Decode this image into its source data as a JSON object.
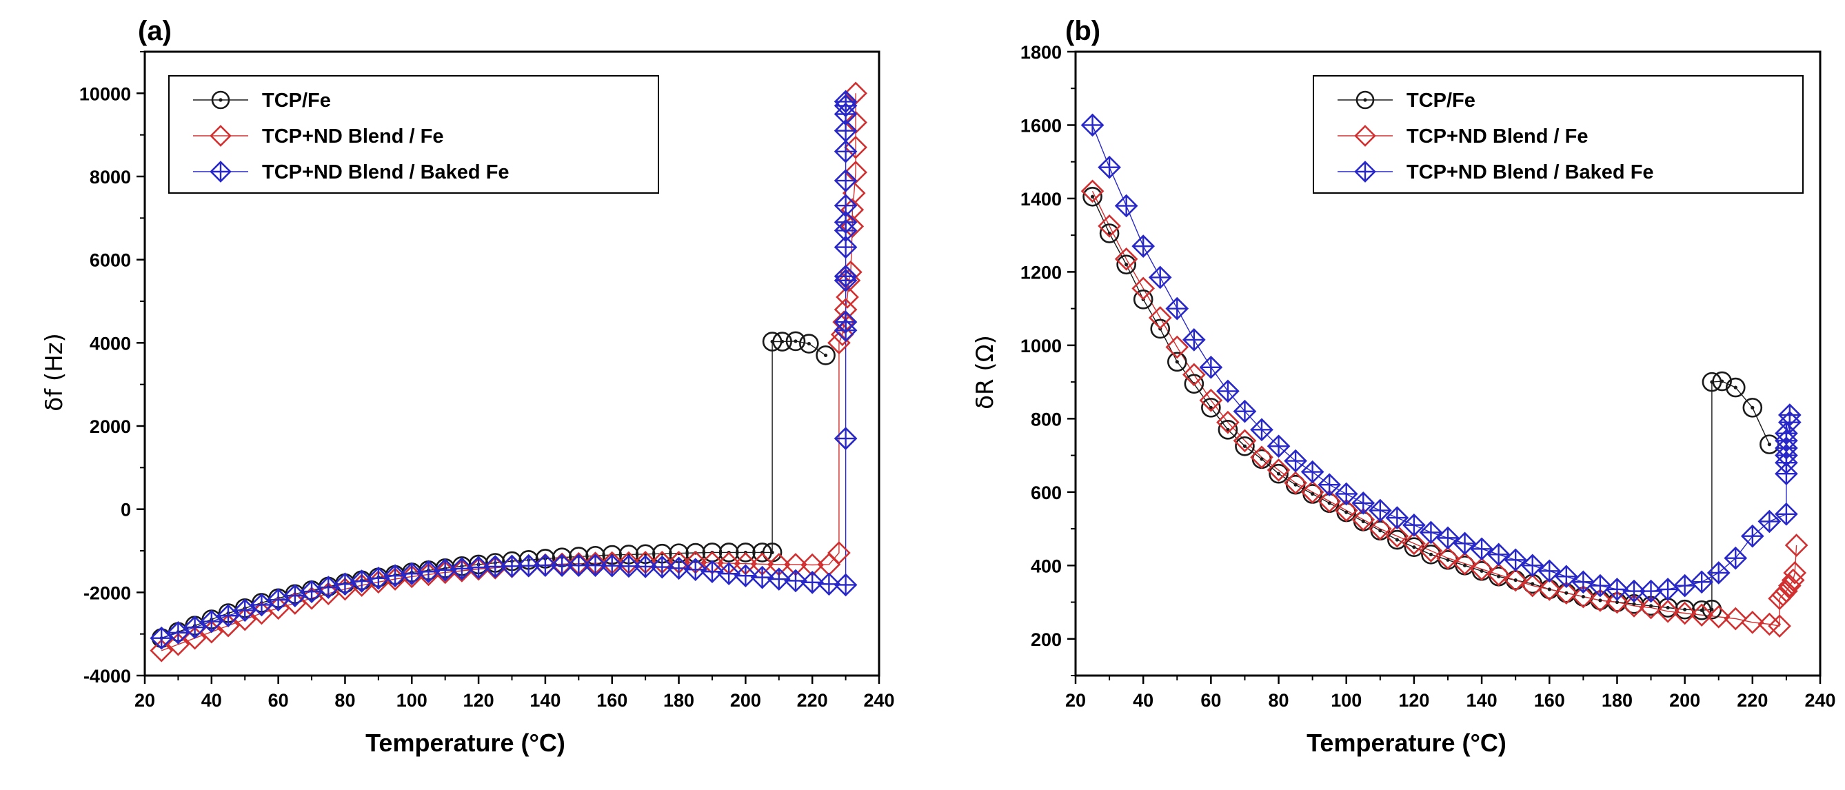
{
  "figure": {
    "background": "#ffffff"
  },
  "chart_data": [
    {
      "type": "scatter",
      "panel_label": "(a)",
      "xlabel": "Temperature (°C)",
      "ylabel": "δf (Hz)",
      "xlim": [
        20,
        240
      ],
      "ylim": [
        -4000,
        11000
      ],
      "xticks": [
        20,
        40,
        60,
        80,
        100,
        120,
        140,
        160,
        180,
        200,
        220,
        240
      ],
      "yticks": [
        -4000,
        -2000,
        0,
        2000,
        4000,
        6000,
        8000,
        10000
      ],
      "legend": "top-left",
      "series": [
        {
          "name": "TCP/Fe",
          "marker": "circle",
          "color": "#1a1a1a",
          "x": [
            25,
            30,
            35,
            40,
            45,
            50,
            55,
            60,
            65,
            70,
            75,
            80,
            85,
            90,
            95,
            100,
            105,
            110,
            115,
            120,
            125,
            130,
            135,
            140,
            145,
            150,
            155,
            160,
            165,
            170,
            175,
            180,
            185,
            190,
            195,
            200,
            205,
            208,
            208,
            211,
            215,
            219,
            224
          ],
          "y": [
            -3100,
            -2950,
            -2800,
            -2650,
            -2500,
            -2380,
            -2250,
            -2140,
            -2040,
            -1950,
            -1860,
            -1780,
            -1710,
            -1640,
            -1580,
            -1520,
            -1470,
            -1420,
            -1370,
            -1330,
            -1290,
            -1250,
            -1220,
            -1190,
            -1160,
            -1140,
            -1120,
            -1100,
            -1090,
            -1080,
            -1070,
            -1060,
            -1050,
            -1040,
            -1040,
            -1040,
            -1040,
            -1040,
            4030,
            4030,
            4040,
            3980,
            3700
          ]
        },
        {
          "name": "TCP+ND Blend / Fe",
          "marker": "diamond",
          "color": "#d23030",
          "x": [
            25,
            30,
            35,
            40,
            45,
            50,
            55,
            60,
            65,
            70,
            75,
            80,
            85,
            90,
            95,
            100,
            105,
            110,
            115,
            120,
            125,
            130,
            135,
            140,
            145,
            150,
            155,
            160,
            165,
            170,
            175,
            180,
            185,
            190,
            195,
            200,
            205,
            210,
            215,
            220,
            225,
            228,
            228,
            229,
            229.5,
            230,
            230.5,
            231,
            231.5,
            232,
            232,
            232.5,
            233,
            233,
            233,
            233
          ],
          "y": [
            -3400,
            -3250,
            -3100,
            -2950,
            -2800,
            -2650,
            -2500,
            -2380,
            -2260,
            -2140,
            -2030,
            -1920,
            -1830,
            -1750,
            -1680,
            -1620,
            -1570,
            -1520,
            -1480,
            -1440,
            -1410,
            -1380,
            -1360,
            -1340,
            -1320,
            -1310,
            -1300,
            -1290,
            -1290,
            -1280,
            -1280,
            -1280,
            -1280,
            -1290,
            -1300,
            -1310,
            -1320,
            -1330,
            -1330,
            -1340,
            -1330,
            -1050,
            4000,
            4200,
            4500,
            4800,
            5100,
            5500,
            5700,
            6800,
            7200,
            7600,
            8100,
            8700,
            9300,
            10000
          ]
        },
        {
          "name": "TCP+ND Blend / Baked Fe",
          "marker": "crossed-diamond",
          "color": "#2828c8",
          "x": [
            25,
            30,
            35,
            40,
            45,
            50,
            55,
            60,
            65,
            70,
            75,
            80,
            85,
            90,
            95,
            100,
            105,
            110,
            115,
            120,
            125,
            130,
            135,
            140,
            145,
            150,
            155,
            160,
            165,
            170,
            175,
            180,
            185,
            190,
            195,
            200,
            205,
            210,
            215,
            220,
            225,
            230,
            230,
            230,
            230,
            230,
            230,
            230,
            230,
            230,
            230,
            230,
            230,
            230,
            230,
            230,
            230
          ],
          "y": [
            -3100,
            -2970,
            -2840,
            -2700,
            -2560,
            -2430,
            -2300,
            -2180,
            -2080,
            -1980,
            -1880,
            -1800,
            -1730,
            -1660,
            -1600,
            -1550,
            -1500,
            -1460,
            -1430,
            -1400,
            -1380,
            -1370,
            -1360,
            -1350,
            -1350,
            -1350,
            -1350,
            -1360,
            -1370,
            -1380,
            -1390,
            -1420,
            -1450,
            -1500,
            -1550,
            -1600,
            -1640,
            -1680,
            -1720,
            -1760,
            -1800,
            -1820,
            1700,
            4300,
            4500,
            5500,
            5600,
            6300,
            6700,
            6900,
            7300,
            7900,
            8600,
            9100,
            9500,
            9700,
            9800
          ]
        }
      ]
    },
    {
      "type": "scatter",
      "panel_label": "(b)",
      "xlabel": "Temperature (°C)",
      "ylabel": "δR (Ω)",
      "xlim": [
        20,
        240
      ],
      "ylim": [
        100,
        1800
      ],
      "xticks": [
        20,
        40,
        60,
        80,
        100,
        120,
        140,
        160,
        180,
        200,
        220,
        240
      ],
      "yticks": [
        200,
        400,
        600,
        800,
        1000,
        1200,
        1400,
        1600,
        1800
      ],
      "legend": "top-right",
      "series": [
        {
          "name": "TCP/Fe",
          "marker": "circle",
          "color": "#1a1a1a",
          "x": [
            25,
            30,
            35,
            40,
            45,
            50,
            55,
            60,
            65,
            70,
            75,
            80,
            85,
            90,
            95,
            100,
            105,
            110,
            115,
            120,
            125,
            130,
            135,
            140,
            145,
            150,
            155,
            160,
            165,
            170,
            175,
            180,
            185,
            190,
            195,
            200,
            205,
            208,
            208,
            211,
            215,
            220,
            225
          ],
          "y": [
            1405,
            1305,
            1220,
            1125,
            1045,
            955,
            895,
            830,
            770,
            725,
            690,
            650,
            620,
            595,
            570,
            545,
            520,
            495,
            470,
            450,
            430,
            415,
            400,
            385,
            370,
            360,
            350,
            335,
            325,
            315,
            305,
            300,
            295,
            290,
            285,
            280,
            278,
            280,
            900,
            902,
            885,
            830,
            730
          ]
        },
        {
          "name": "TCP+ND Blend / Fe",
          "marker": "diamond",
          "color": "#d23030",
          "x": [
            25,
            30,
            35,
            40,
            45,
            50,
            55,
            60,
            65,
            70,
            75,
            80,
            85,
            90,
            95,
            100,
            105,
            110,
            115,
            120,
            125,
            130,
            135,
            140,
            145,
            150,
            155,
            160,
            165,
            170,
            175,
            180,
            185,
            190,
            195,
            200,
            205,
            210,
            215,
            220,
            225,
            228,
            228,
            229,
            230,
            231,
            232,
            232.5,
            233
          ],
          "y": [
            1420,
            1325,
            1235,
            1155,
            1075,
            995,
            920,
            850,
            790,
            740,
            695,
            660,
            625,
            600,
            575,
            550,
            525,
            500,
            480,
            460,
            440,
            420,
            405,
            390,
            375,
            360,
            345,
            335,
            325,
            315,
            305,
            300,
            290,
            285,
            275,
            270,
            265,
            260,
            255,
            245,
            240,
            235,
            310,
            320,
            330,
            345,
            360,
            380,
            455
          ]
        },
        {
          "name": "TCP+ND Blend / Baked Fe",
          "marker": "crossed-diamond",
          "color": "#2828c8",
          "x": [
            25,
            30,
            35,
            40,
            45,
            50,
            55,
            60,
            65,
            70,
            75,
            80,
            85,
            90,
            95,
            100,
            105,
            110,
            115,
            120,
            125,
            130,
            135,
            140,
            145,
            150,
            155,
            160,
            165,
            170,
            175,
            180,
            185,
            190,
            195,
            200,
            205,
            210,
            215,
            220,
            225,
            230,
            230,
            230,
            230,
            230,
            230,
            230,
            231,
            231
          ],
          "y": [
            1600,
            1485,
            1380,
            1270,
            1185,
            1100,
            1015,
            940,
            875,
            820,
            770,
            725,
            685,
            655,
            620,
            595,
            570,
            550,
            530,
            510,
            490,
            475,
            460,
            445,
            430,
            415,
            400,
            385,
            370,
            355,
            345,
            335,
            330,
            330,
            335,
            345,
            355,
            380,
            420,
            480,
            520,
            540,
            650,
            680,
            700,
            720,
            740,
            760,
            790,
            810
          ]
        }
      ]
    }
  ]
}
